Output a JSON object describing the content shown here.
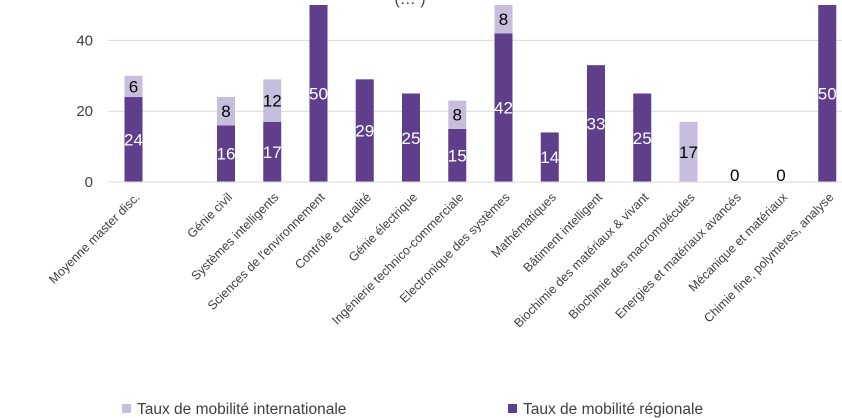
{
  "chart_data": {
    "type": "bar",
    "stacked": true,
    "title": "(… )",
    "categories": [
      "Moyenne master disc.",
      "",
      "Génie civil",
      "Systèmes intelligents",
      "Sciences de l'environnement",
      "Contrôle et qualité",
      "Génie électrique",
      "Ingénierie technico-commerciale",
      "Electronique des systèmes",
      "Mathématiques",
      "Bâtiment intelligent",
      "Biochimie des matériaux & vivant",
      "Biochimie des macromolécules",
      "Energies et matériaux avancés",
      "Mécanique et matériaux",
      "Chimie fine, polymères, analyse"
    ],
    "series": [
      {
        "name": "Taux de mobilité régionale",
        "color": "#5f3e8c",
        "values": [
          24,
          null,
          16,
          17,
          50,
          29,
          25,
          15,
          42,
          14,
          33,
          25,
          0,
          0,
          0,
          50
        ],
        "labels": [
          "24",
          "",
          "16",
          "17",
          "50",
          "29",
          "25",
          "15",
          "42",
          "14",
          "33",
          "25",
          "",
          "0",
          "0",
          "50"
        ]
      },
      {
        "name": "Taux de mobilité internationale",
        "color": "#c7bedd",
        "values": [
          6,
          null,
          8,
          12,
          0,
          0,
          0,
          8,
          8,
          0,
          0,
          0,
          17,
          0,
          0,
          0
        ],
        "labels": [
          "6",
          "",
          "8",
          "12",
          "",
          "",
          "",
          "8",
          "8",
          "",
          "",
          "",
          "17",
          "",
          "",
          ""
        ]
      }
    ],
    "yticks": [
      0,
      20,
      40
    ],
    "ylim": [
      0,
      50
    ],
    "grid": true,
    "legend": "bottom"
  }
}
